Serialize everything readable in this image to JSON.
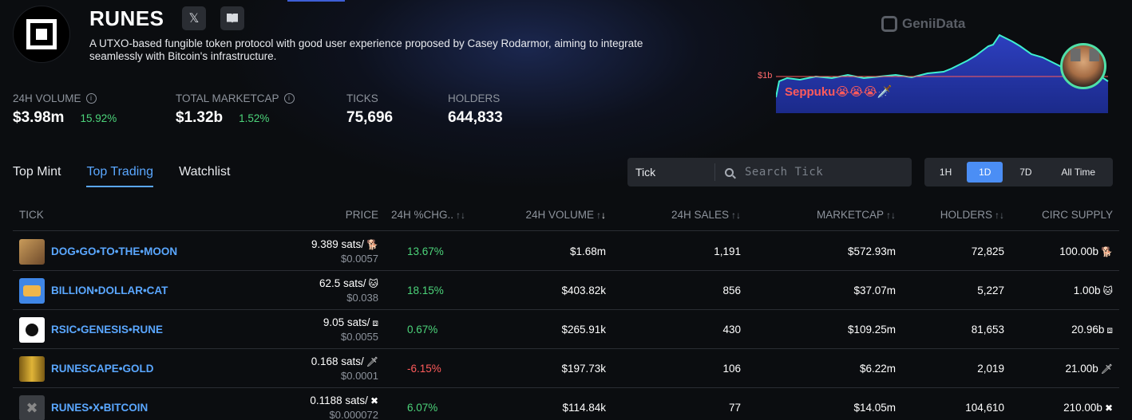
{
  "header": {
    "title": "RUNES",
    "x_icon": "x-icon",
    "docs_icon": "book-icon",
    "description": "A UTXO-based fungible token protocol with good user experience proposed by Casey Rodarmor, aiming to integrate seamlessly with Bitcoin's infrastructure."
  },
  "stats": [
    {
      "label": "24H VOLUME",
      "value": "$3.98m",
      "change": "15.92%",
      "has_info": true
    },
    {
      "label": "TOTAL MARKETCAP",
      "value": "$1.32b",
      "change": "1.52%",
      "has_info": true
    },
    {
      "label": "TICKS",
      "value": "75,696"
    },
    {
      "label": "HOLDERS",
      "value": "644,833"
    }
  ],
  "promo": {
    "brand": "GeniiData",
    "marker": "$1b",
    "caption": "Seppuku😭😭😭🗡️"
  },
  "tabs": [
    {
      "label": "Top Mint",
      "active": false
    },
    {
      "label": "Top Trading",
      "active": true
    },
    {
      "label": "Watchlist",
      "active": false
    }
  ],
  "search": {
    "select_value": "Tick",
    "placeholder": "Search Tick"
  },
  "ranges": [
    {
      "label": "1H",
      "active": false
    },
    {
      "label": "1D",
      "active": true
    },
    {
      "label": "7D",
      "active": false
    },
    {
      "label": "All Time",
      "active": false
    }
  ],
  "columns": {
    "tick": "TICK",
    "price": "PRICE",
    "change": "24H %CHG..",
    "volume": "24H VOLUME",
    "sales": "24H SALES",
    "marketcap": "MARKETCAP",
    "holders": "HOLDERS",
    "supply": "CIRC SUPPLY"
  },
  "rows": [
    {
      "tick": "DOG•GO•TO•THE•MOON",
      "price": "9.389 sats/",
      "symbol": "🐕",
      "price_usd": "$0.0057",
      "change": "13.67%",
      "direction": "up",
      "volume": "$1.68m",
      "sales": "1,191",
      "marketcap": "$572.93m",
      "holders": "72,825",
      "supply": "100.00b",
      "icon": "dog-icon"
    },
    {
      "tick": "BILLION•DOLLAR•CAT",
      "price": "62.5 sats/",
      "symbol": "🐱",
      "price_usd": "$0.038",
      "change": "18.15%",
      "direction": "up",
      "volume": "$403.82k",
      "sales": "856",
      "marketcap": "$37.07m",
      "holders": "5,227",
      "supply": "1.00b",
      "icon": "cat-icon"
    },
    {
      "tick": "RSIC•GENESIS•RUNE",
      "price": "9.05 sats/",
      "symbol": "⧈",
      "price_usd": "$0.0055",
      "change": "0.67%",
      "direction": "up",
      "volume": "$265.91k",
      "sales": "430",
      "marketcap": "$109.25m",
      "holders": "81,653",
      "supply": "20.96b",
      "icon": "bitcoin-icon"
    },
    {
      "tick": "RUNESCAPE•GOLD",
      "price": "0.168 sats/",
      "symbol": "🗡",
      "price_usd": "$0.0001",
      "change": "-6.15%",
      "direction": "down",
      "volume": "$197.73k",
      "sales": "106",
      "marketcap": "$6.22m",
      "holders": "2,019",
      "supply": "21.00b",
      "icon": "gold-coins-icon"
    },
    {
      "tick": "RUNES•X•BITCOIN",
      "price": "0.1188 sats/",
      "symbol": "✖",
      "price_usd": "$0.000072",
      "change": "6.07%",
      "direction": "up",
      "volume": "$114.84k",
      "sales": "77",
      "marketcap": "$14.05m",
      "holders": "104,610",
      "supply": "210.00b",
      "icon": "x-mark-icon"
    }
  ],
  "colors": {
    "accent": "#5aa7ff",
    "active_range": "#4b8ef5",
    "positive": "#4cd47a",
    "negative": "#ff5b5b"
  }
}
